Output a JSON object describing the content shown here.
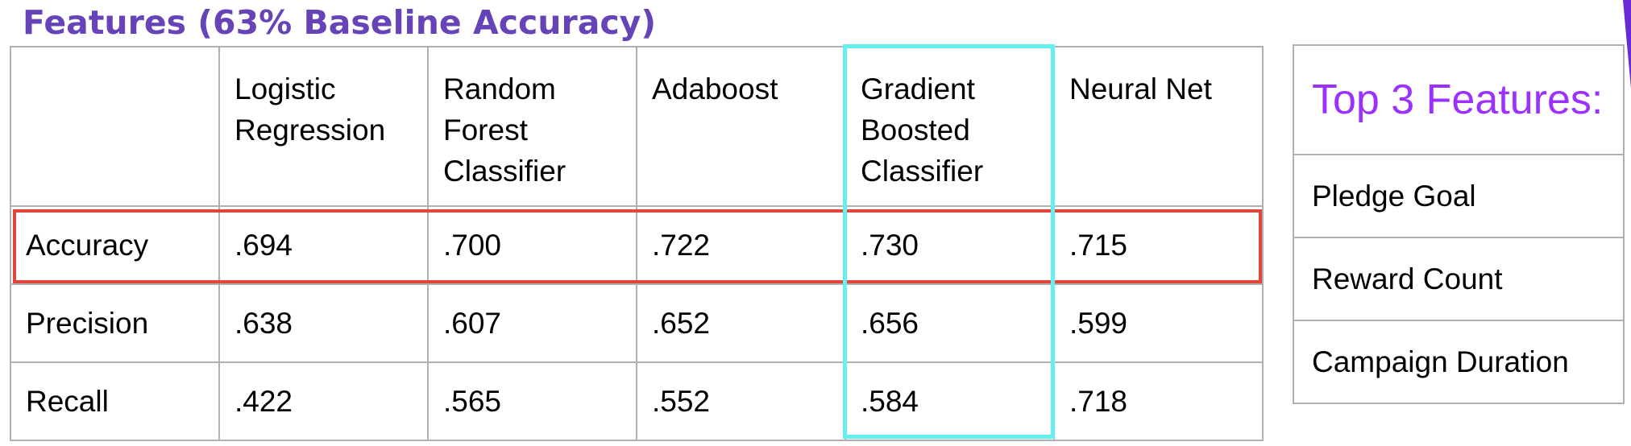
{
  "title": "Features (63% Baseline Accuracy)",
  "colors": {
    "title": "#6644b8",
    "row_highlight": "#e0473a",
    "column_highlight": "#64f0f0",
    "features_header": "#9b30ff",
    "grid": "#b0b0b0"
  },
  "results_table": {
    "columns": [
      "",
      "Logistic Regression",
      "Random Forest Classifier",
      "Adaboost",
      "Gradient Boosted Classifier",
      "Neural Net"
    ],
    "header_lines": [
      [],
      [
        "Logistic",
        "Regression"
      ],
      [
        "Random",
        "Forest",
        "Classifier"
      ],
      [
        "Adaboost"
      ],
      [
        "Gradient",
        "Boosted",
        "Classifier"
      ],
      [
        "Neural Net"
      ]
    ],
    "rows": [
      {
        "metric": "Accuracy",
        "values": [
          ".694",
          ".700",
          ".722",
          ".730",
          ".715"
        ]
      },
      {
        "metric": "Precision",
        "values": [
          ".638",
          ".607",
          ".652",
          ".656",
          ".599"
        ]
      },
      {
        "metric": "Recall",
        "values": [
          ".422",
          ".565",
          ".552",
          ".584",
          ".718"
        ]
      }
    ],
    "highlighted_row": "Accuracy",
    "highlighted_column": "Gradient Boosted Classifier"
  },
  "features_panel": {
    "header": "Top 3 Features:",
    "items": [
      "Pledge Goal",
      "Reward Count",
      "Campaign Duration"
    ]
  }
}
